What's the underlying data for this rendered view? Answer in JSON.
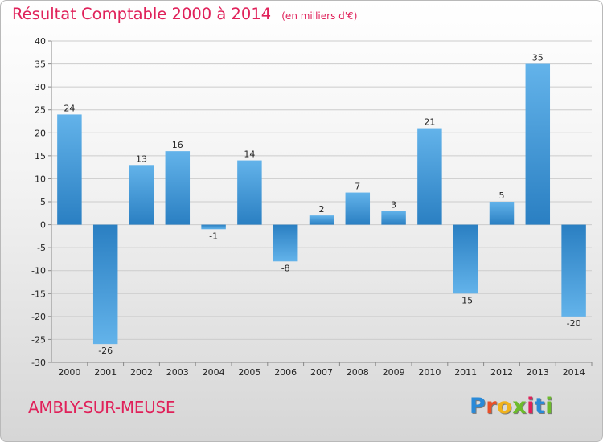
{
  "header": {
    "title": "Résultat Comptable 2000 à 2014",
    "subtitle": "(en milliers d'€)"
  },
  "footer": {
    "commune": "AMBLY-SUR-MEUSE",
    "logo_letters": [
      "P",
      "r",
      "o",
      "x",
      "i",
      "t",
      "i"
    ]
  },
  "colors": {
    "title": "#e0215a",
    "bar_top": "#63b3ea",
    "bar_bottom": "#2a7fc2",
    "grid": "#cccccc",
    "axis": "#888888",
    "logo": [
      "#2a8ad8",
      "#e8512a",
      "#f0b21c",
      "#6cbb2c",
      "#e0215a",
      "#2a8ad8",
      "#6cbb2c"
    ]
  },
  "chart_data": {
    "type": "bar",
    "title": "Résultat Comptable 2000 à 2014",
    "subtitle": "(en milliers d'€)",
    "xlabel": "",
    "ylabel": "",
    "categories": [
      "2000",
      "2001",
      "2002",
      "2003",
      "2004",
      "2005",
      "2006",
      "2007",
      "2008",
      "2009",
      "2010",
      "2011",
      "2012",
      "2013",
      "2014"
    ],
    "values": [
      24,
      -26,
      13,
      16,
      -1,
      14,
      -8,
      2,
      7,
      3,
      21,
      -15,
      5,
      35,
      -20
    ],
    "ylim": [
      -30,
      40
    ],
    "yticks": [
      -30,
      -25,
      -20,
      -15,
      -10,
      -5,
      0,
      5,
      10,
      15,
      20,
      25,
      30,
      35,
      40
    ],
    "grid": true,
    "legend": "none",
    "data_labels": true
  }
}
